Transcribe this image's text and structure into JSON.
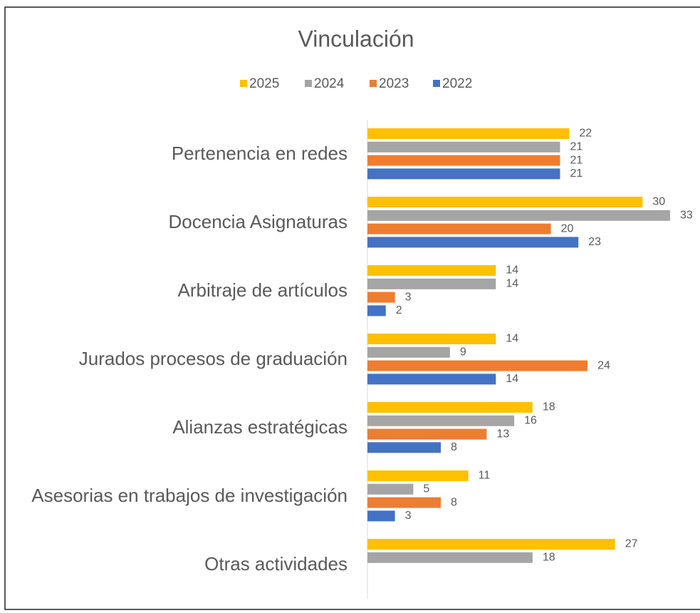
{
  "chart_data": {
    "type": "bar",
    "orientation": "horizontal",
    "title": "Vinculación",
    "categories": [
      "Pertenencia en redes",
      "Docencia Asignaturas",
      "Arbitraje de artículos",
      "Jurados procesos de graduación",
      "Alianzas estratégicas",
      "Asesorias en trabajos de investigación",
      "Otras actividades"
    ],
    "series": [
      {
        "name": "2025",
        "color": "#ffc000",
        "values": [
          22,
          30,
          14,
          14,
          18,
          11,
          27
        ]
      },
      {
        "name": "2024",
        "color": "#a5a5a5",
        "values": [
          21,
          33,
          14,
          9,
          16,
          5,
          18
        ]
      },
      {
        "name": "2023",
        "color": "#ed7d31",
        "values": [
          21,
          20,
          3,
          24,
          13,
          8,
          null
        ]
      },
      {
        "name": "2022",
        "color": "#4472c4",
        "values": [
          21,
          23,
          2,
          14,
          8,
          3,
          null
        ]
      }
    ],
    "legend": "top"
  }
}
